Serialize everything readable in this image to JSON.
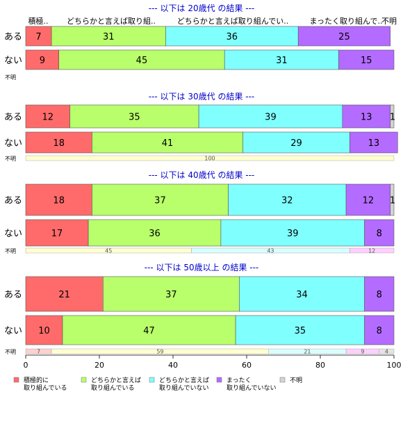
{
  "chart_data": {
    "type": "bar",
    "stacked": true,
    "orientation": "horizontal",
    "xlim": [
      0,
      100
    ],
    "x_ticks": [
      0,
      20,
      40,
      60,
      80,
      100
    ],
    "category_labels": [
      "積極..",
      "どちらかと言えば取り組..",
      "どちらかと言えば取り組んでい..",
      "まったく取り組んで..",
      "不明"
    ],
    "colors": [
      "#ff6b6b",
      "#b8ff6b",
      "#80ffff",
      "#b46bff",
      "#d3d3d3"
    ],
    "colors_light": [
      "#ffd0d0",
      "#ffffd0",
      "#d8ffff",
      "#ffd0ff",
      "#e4e4e4"
    ],
    "legend": [
      {
        "line1": "積極的に",
        "line2": "取り組んでいる"
      },
      {
        "line1": "どちらかと言えば",
        "line2": "取り組んでいる"
      },
      {
        "line1": "どちらかと言えば",
        "line2": "取り組んでいない"
      },
      {
        "line1": "まったく",
        "line2": "取り組んでいない"
      },
      {
        "line1": "不明",
        "line2": ""
      }
    ],
    "panels": [
      {
        "title": "--- 以下は 20歳代 の結果 ---",
        "rows": [
          {
            "label": "ある",
            "values": [
              7,
              31,
              36,
              25,
              0
            ]
          },
          {
            "label": "ない",
            "values": [
              9,
              45,
              31,
              15,
              0
            ]
          }
        ],
        "unknown": {
          "label": "不明",
          "values": [],
          "labels": []
        }
      },
      {
        "title": "--- 以下は 30歳代 の結果 ---",
        "rows": [
          {
            "label": "ある",
            "values": [
              12,
              35,
              39,
              13,
              1
            ]
          },
          {
            "label": "ない",
            "values": [
              18,
              41,
              29,
              13,
              0
            ]
          }
        ],
        "unknown": {
          "label": "不明",
          "values": [
            0,
            100,
            0,
            0,
            0
          ],
          "labels": [
            "",
            "100",
            "",
            "",
            ""
          ]
        }
      },
      {
        "title": "--- 以下は 40歳代 の結果 ---",
        "rows": [
          {
            "label": "ある",
            "values": [
              18,
              37,
              32,
              12,
              1
            ]
          },
          {
            "label": "ない",
            "values": [
              17,
              36,
              39,
              8,
              0
            ]
          }
        ],
        "unknown": {
          "label": "不明",
          "values": [
            0,
            45,
            43,
            12,
            0
          ],
          "labels": [
            "",
            "45",
            "43",
            "12",
            ""
          ]
        }
      },
      {
        "title": "--- 以下は 50歳以上 の結果 ---",
        "rows": [
          {
            "label": "ある",
            "values": [
              21,
              37,
              34,
              8,
              0
            ]
          },
          {
            "label": "ない",
            "values": [
              10,
              47,
              35,
              8,
              0
            ]
          }
        ],
        "unknown": {
          "label": "不明",
          "values": [
            7,
            59,
            21,
            9,
            4
          ],
          "labels": [
            "7",
            "59",
            "21",
            "9",
            "4"
          ]
        }
      }
    ]
  }
}
